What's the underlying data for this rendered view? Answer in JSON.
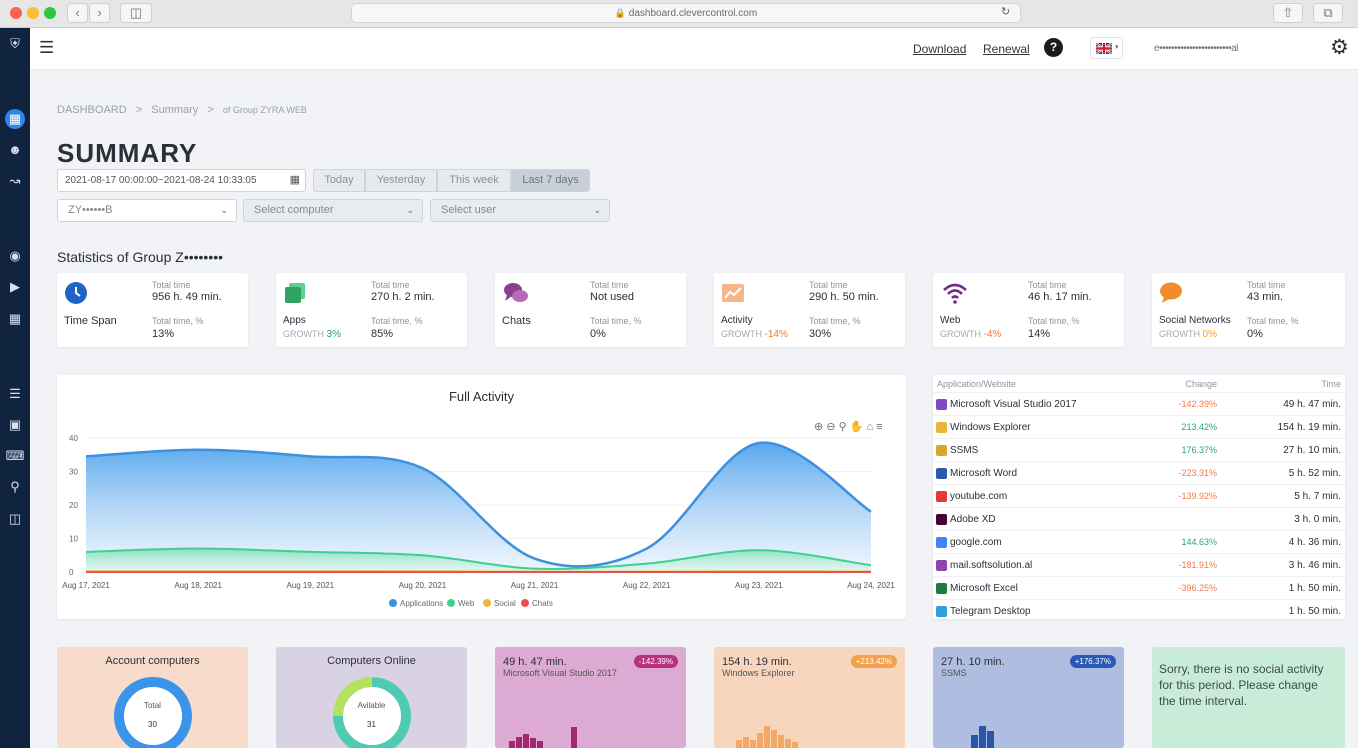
{
  "browser": {
    "url": "dashboard.clevercontrol.com"
  },
  "header": {
    "download": "Download",
    "renewal": "Renewal",
    "user_email": "e••••••••••••••••••••••••al"
  },
  "breadcrumb": [
    "DASHBOARD",
    ">",
    "Summary",
    ">",
    "of Group ZYRA WEB"
  ],
  "page_title": "SUMMARY",
  "filters": {
    "date_range": "2021-08-17 00:00:00~2021-08-24 10:33:05",
    "periods": [
      "Today",
      "Yesterday",
      "This week",
      "Last 7 days"
    ],
    "selected_period": "Last 7 days",
    "group_value": "ZY••••••B",
    "computer_placeholder": "Select computer",
    "user_placeholder": "Select user"
  },
  "stats_title": "Statistics of Group Z••••••••",
  "stat_cards": [
    {
      "name": "Time Span",
      "growth_label": "",
      "growth": "",
      "total_time_label": "Total time",
      "total_time": "956 h. 49 min.",
      "pct_label": "Total time, %",
      "pct": "13%",
      "icon": "clock-icon",
      "color": "#1f63c6"
    },
    {
      "name": "Apps",
      "growth_label": "GROWTH",
      "growth": "3%",
      "total_time_label": "Total time",
      "total_time": "270 h. 2 min.",
      "pct_label": "Total time, %",
      "pct": "85%",
      "icon": "apps-icon",
      "color": "#36b66e"
    },
    {
      "name": "Chats",
      "growth_label": "",
      "growth": "",
      "total_time_label": "Total time",
      "total_time": "Not used",
      "pct_label": "Total time, %",
      "pct": "0%",
      "icon": "chat-icon",
      "color": "#8b3f8f"
    },
    {
      "name": "Activity",
      "growth_label": "GROWTH",
      "growth": "-14%",
      "total_time_label": "Total time",
      "total_time": "290 h. 50 min.",
      "pct_label": "Total time, %",
      "pct": "30%",
      "icon": "activity-icon",
      "color": "#f19a55"
    },
    {
      "name": "Web",
      "growth_label": "GROWTH",
      "growth": "-4%",
      "total_time_label": "Total time",
      "total_time": "46 h. 17 min.",
      "pct_label": "Total time, %",
      "pct": "14%",
      "icon": "wifi-icon",
      "color": "#6e2f8c"
    },
    {
      "name": "Social Networks",
      "growth_label": "GROWTH",
      "growth": "0%",
      "total_time_label": "Total time",
      "total_time": "43 min.",
      "pct_label": "Total time, %",
      "pct": "0%",
      "icon": "speech-bubble-icon",
      "color": "#f28b2b"
    }
  ],
  "chart_data": {
    "type": "area",
    "title": "Full Activity",
    "x": [
      "Aug 17, 2021",
      "Aug 18, 2021",
      "Aug 19, 2021",
      "Aug 20, 2021",
      "Aug 21, 2021",
      "Aug 22, 2021",
      "Aug 23, 2021",
      "Aug 24, 2021"
    ],
    "ylim": [
      0,
      40
    ],
    "yticks": [
      0,
      10,
      20,
      30,
      40
    ],
    "series": [
      {
        "name": "Applications",
        "color": "#3d8fe0",
        "values": [
          34.5,
          36.5,
          34.5,
          31,
          4,
          7,
          38.5,
          18
        ]
      },
      {
        "name": "Web",
        "color": "#3fcf8f",
        "values": [
          6,
          7,
          6,
          5,
          1,
          2.5,
          6.5,
          2
        ]
      },
      {
        "name": "Social",
        "color": "#f2b53a",
        "values": [
          0.2,
          0.2,
          0.2,
          0.2,
          0.1,
          0.1,
          0.2,
          0.1
        ]
      },
      {
        "name": "Chats",
        "color": "#e85151",
        "values": [
          0,
          0,
          0,
          0,
          0,
          0,
          0,
          0
        ]
      }
    ],
    "grid": true,
    "legend": "bottom"
  },
  "app_table": {
    "headers": [
      "Application/Website",
      "Change",
      "Time"
    ],
    "rows": [
      {
        "name": "Microsoft Visual Studio 2017",
        "change": "-142.39%",
        "time": "49 h. 47 min.",
        "up": false,
        "icon_color": "#7b4bc4"
      },
      {
        "name": "Windows Explorer",
        "change": "213.42%",
        "time": "154 h. 19 min.",
        "up": true,
        "icon_color": "#e9b43d"
      },
      {
        "name": "SSMS",
        "change": "176.37%",
        "time": "27 h. 10 min.",
        "up": true,
        "icon_color": "#d9a72c"
      },
      {
        "name": "Microsoft Word",
        "change": "-223.31%",
        "time": "5 h. 52 min.",
        "up": false,
        "icon_color": "#2b5ba8"
      },
      {
        "name": "youtube.com",
        "change": "-139.92%",
        "time": "5 h. 7 min.",
        "up": false,
        "icon_color": "#e53935"
      },
      {
        "name": "Adobe XD",
        "change": "",
        "time": "3 h. 0 min.",
        "up": true,
        "icon_color": "#470137"
      },
      {
        "name": "google.com",
        "change": "144.63%",
        "time": "4 h. 36 min.",
        "up": true,
        "icon_color": "#4285f4"
      },
      {
        "name": "mail.softsolution.al",
        "change": "-181.91%",
        "time": "3 h. 46 min.",
        "up": false,
        "icon_color": "#8e44ad"
      },
      {
        "name": "Microsoft Excel",
        "change": "-396.25%",
        "time": "1 h. 50 min.",
        "up": false,
        "icon_color": "#1f7a43"
      },
      {
        "name": "Telegram Desktop",
        "change": "",
        "time": "1 h. 50 min.",
        "up": true,
        "icon_color": "#2ea1dd"
      }
    ]
  },
  "bottom_cards": {
    "account_computers": {
      "title": "Account computers",
      "center_label": "Total",
      "center_value": "30"
    },
    "computers_online": {
      "title": "Computers Online",
      "center_label": "Avilable",
      "center_value": "31"
    },
    "vs": {
      "time": "49 h. 47 min.",
      "app": "Microsoft Visual Studio 2017",
      "badge": "-142.39%"
    },
    "explorer": {
      "time": "154 h. 19 min.",
      "app": "Windows Explorer",
      "badge": "+213.42%"
    },
    "ssms": {
      "time": "27 h. 10 min.",
      "app": "SSMS",
      "badge": "+176.37%"
    },
    "social": {
      "message": "Sorry, there is no social activity for this period. Please change the time interval."
    }
  }
}
